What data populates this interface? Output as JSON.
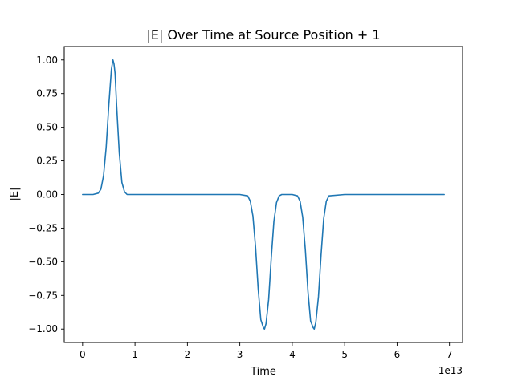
{
  "chart_data": {
    "type": "line",
    "title": "|E| Over Time at Source Position + 1",
    "xlabel": "Time",
    "ylabel": "|E|",
    "x_offset_label": "1e13",
    "xlim": [
      -0.35,
      7.25
    ],
    "ylim": [
      -1.1,
      1.1
    ],
    "x_ticks": [
      0,
      1,
      2,
      3,
      4,
      5,
      6,
      7
    ],
    "x_tick_labels": [
      "0",
      "1",
      "2",
      "3",
      "4",
      "5",
      "6",
      "7"
    ],
    "y_ticks": [
      -1.0,
      -0.75,
      -0.5,
      -0.25,
      0.0,
      0.25,
      0.5,
      0.75,
      1.0
    ],
    "y_tick_labels": [
      "−1.00",
      "−0.75",
      "−0.50",
      "−0.25",
      "0.00",
      "0.25",
      "0.50",
      "0.75",
      "1.00"
    ],
    "grid": false,
    "series": [
      {
        "color": "#1f77b4",
        "x": [
          0,
          0.2,
          0.3,
          0.35,
          0.4,
          0.45,
          0.5,
          0.55,
          0.58,
          0.6,
          0.62,
          0.65,
          0.7,
          0.75,
          0.8,
          0.85,
          1,
          2,
          3,
          3.15,
          3.2,
          3.25,
          3.3,
          3.35,
          3.4,
          3.45,
          3.47,
          3.5,
          3.55,
          3.6,
          3.65,
          3.7,
          3.75,
          3.8,
          4.0,
          4.1,
          4.15,
          4.2,
          4.25,
          4.3,
          4.35,
          4.4,
          4.42,
          4.45,
          4.5,
          4.55,
          4.6,
          4.65,
          4.7,
          5,
          6,
          6.9
        ],
        "y": [
          0,
          0,
          0.01,
          0.04,
          0.14,
          0.35,
          0.66,
          0.93,
          1.0,
          0.97,
          0.9,
          0.66,
          0.31,
          0.09,
          0.02,
          0.0,
          0,
          0,
          0,
          -0.01,
          -0.05,
          -0.16,
          -0.39,
          -0.7,
          -0.93,
          -0.99,
          -1.0,
          -0.96,
          -0.78,
          -0.47,
          -0.2,
          -0.06,
          -0.01,
          0,
          0,
          -0.01,
          -0.05,
          -0.17,
          -0.41,
          -0.72,
          -0.94,
          -0.99,
          -1.0,
          -0.95,
          -0.76,
          -0.45,
          -0.18,
          -0.05,
          -0.01,
          0,
          0,
          0
        ]
      }
    ]
  }
}
